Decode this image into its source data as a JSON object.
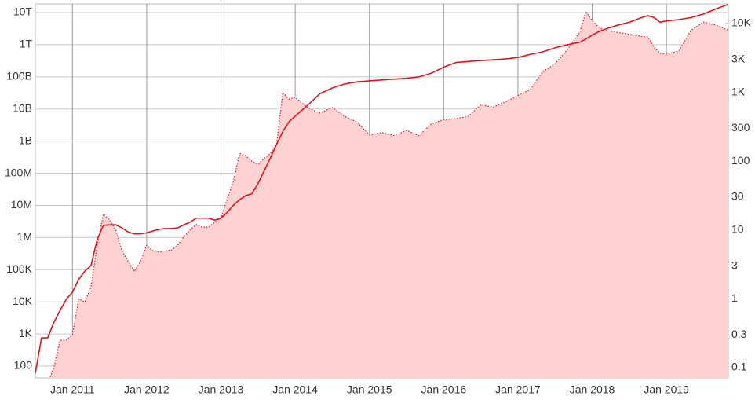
{
  "chart_data": {
    "type": "line",
    "x": [
      "2010-07",
      "2010-08",
      "2010-09",
      "2010-10",
      "2010-11",
      "2010-12",
      "2011-01",
      "2011-02",
      "2011-03",
      "2011-04",
      "2011-05",
      "2011-06",
      "2011-07",
      "2011-08",
      "2011-09",
      "2011-10",
      "2011-11",
      "2011-12",
      "2012-01",
      "2012-02",
      "2012-03",
      "2012-04",
      "2012-05",
      "2012-06",
      "2012-07",
      "2012-08",
      "2012-09",
      "2012-10",
      "2012-11",
      "2012-12",
      "2013-01",
      "2013-02",
      "2013-03",
      "2013-04",
      "2013-05",
      "2013-06",
      "2013-07",
      "2013-08",
      "2013-09",
      "2013-10",
      "2013-11",
      "2013-12",
      "2014-01",
      "2014-03",
      "2014-05",
      "2014-07",
      "2014-09",
      "2014-11",
      "2015-01",
      "2015-03",
      "2015-05",
      "2015-07",
      "2015-09",
      "2015-11",
      "2016-01",
      "2016-03",
      "2016-05",
      "2016-07",
      "2016-09",
      "2016-11",
      "2017-01",
      "2017-03",
      "2017-05",
      "2017-07",
      "2017-09",
      "2017-11",
      "2017-12",
      "2018-01",
      "2018-02",
      "2018-03",
      "2018-05",
      "2018-07",
      "2018-09",
      "2018-10",
      "2018-11",
      "2018-12",
      "2019-01",
      "2019-03",
      "2019-05",
      "2019-07",
      "2019-09",
      "2019-11"
    ],
    "series": [
      {
        "color": "#e8101a",
        "axis": "y",
        "values": [
          60,
          750,
          760,
          2300,
          5400,
          12000,
          20000,
          50000,
          90000,
          135000,
          870000,
          2400000,
          2500000,
          2500000,
          2000000,
          1500000,
          1300000,
          1300000,
          1400000,
          1600000,
          1800000,
          1900000,
          1900000,
          2000000,
          2500000,
          3000000,
          4000000,
          4000000,
          4000000,
          3500000,
          4000000,
          6000000,
          10000000,
          15000000,
          20000000,
          23000000,
          48000000,
          120000000,
          300000000,
          800000000,
          2000000000,
          4000000000,
          6000000000,
          13000000000,
          30000000000,
          45000000000,
          60000000000,
          70000000000,
          75000000000,
          80000000000,
          85000000000,
          90000000000,
          100000000000,
          130000000000,
          200000000000,
          280000000000,
          300000000000,
          320000000000,
          340000000000,
          360000000000,
          400000000000,
          500000000000,
          600000000000,
          800000000000,
          1000000000000,
          1200000000000,
          1500000000000,
          2000000000000,
          2500000000000,
          3000000000000,
          4000000000000,
          5000000000000,
          7000000000000,
          8000000000000,
          7000000000000,
          5000000000000,
          5500000000000,
          6000000000000,
          7000000000000,
          9000000000000,
          13000000000000,
          18000000000000
        ]
      },
      {
        "color": "#e8101a",
        "fill": "#ffd2d2",
        "axis": "y2",
        "values": [
          0.06,
          0.07,
          0.06,
          0.1,
          0.25,
          0.25,
          0.3,
          1.0,
          0.9,
          1.5,
          6,
          17,
          14,
          10,
          5,
          3.5,
          2.5,
          3.5,
          6,
          5,
          4.8,
          5,
          5.1,
          6,
          8,
          10,
          12,
          11,
          11,
          13,
          15,
          28,
          50,
          130,
          120,
          100,
          90,
          110,
          130,
          180,
          1000,
          800,
          850,
          600,
          500,
          600,
          450,
          370,
          240,
          260,
          235,
          280,
          235,
          350,
          400,
          415,
          450,
          660,
          610,
          730,
          900,
          1100,
          2000,
          2600,
          4200,
          7500,
          15000,
          11000,
          9000,
          8000,
          7500,
          7000,
          6500,
          6400,
          4500,
          3700,
          3600,
          4000,
          8000,
          10500,
          9500,
          8000
        ]
      }
    ],
    "xlim": [
      "2010-07",
      "2019-11"
    ],
    "xticks": [
      {
        "value": "2011-01",
        "label": "Jan 2011"
      },
      {
        "value": "2012-01",
        "label": "Jan 2012"
      },
      {
        "value": "2013-01",
        "label": "Jan 2013"
      },
      {
        "value": "2014-01",
        "label": "Jan 2014"
      },
      {
        "value": "2015-01",
        "label": "Jan 2015"
      },
      {
        "value": "2016-01",
        "label": "Jan 2016"
      },
      {
        "value": "2017-01",
        "label": "Jan 2017"
      },
      {
        "value": "2018-01",
        "label": "Jan 2018"
      },
      {
        "value": "2019-01",
        "label": "Jan 2019"
      }
    ],
    "ylim": [
      43,
      18600000000000
    ],
    "log_y": true,
    "yticks": [
      100,
      {
        "value": 1000,
        "label": "1K"
      },
      {
        "value": 10000,
        "label": "10K"
      },
      {
        "value": 100000,
        "label": "100K"
      },
      {
        "value": 1000000,
        "label": "1M"
      },
      {
        "value": 10000000,
        "label": "10M"
      },
      {
        "value": 100000000,
        "label": "100M"
      },
      {
        "value": 1000000000,
        "label": "1B"
      },
      {
        "value": 10000000000,
        "label": "10B"
      },
      {
        "value": 100000000000,
        "label": "100B"
      },
      {
        "value": 1000000000000,
        "label": "1T"
      },
      {
        "value": 10000000000000,
        "label": "10T"
      }
    ],
    "y2lim": [
      0.071,
      19300
    ],
    "y2ticks": [
      0.1,
      0.3,
      1,
      3,
      10,
      30,
      100,
      300,
      {
        "value": 1000,
        "label": "1K"
      },
      {
        "value": 3000,
        "label": "3K"
      },
      {
        "value": 10000,
        "label": "10K"
      }
    ],
    "grid": true
  }
}
